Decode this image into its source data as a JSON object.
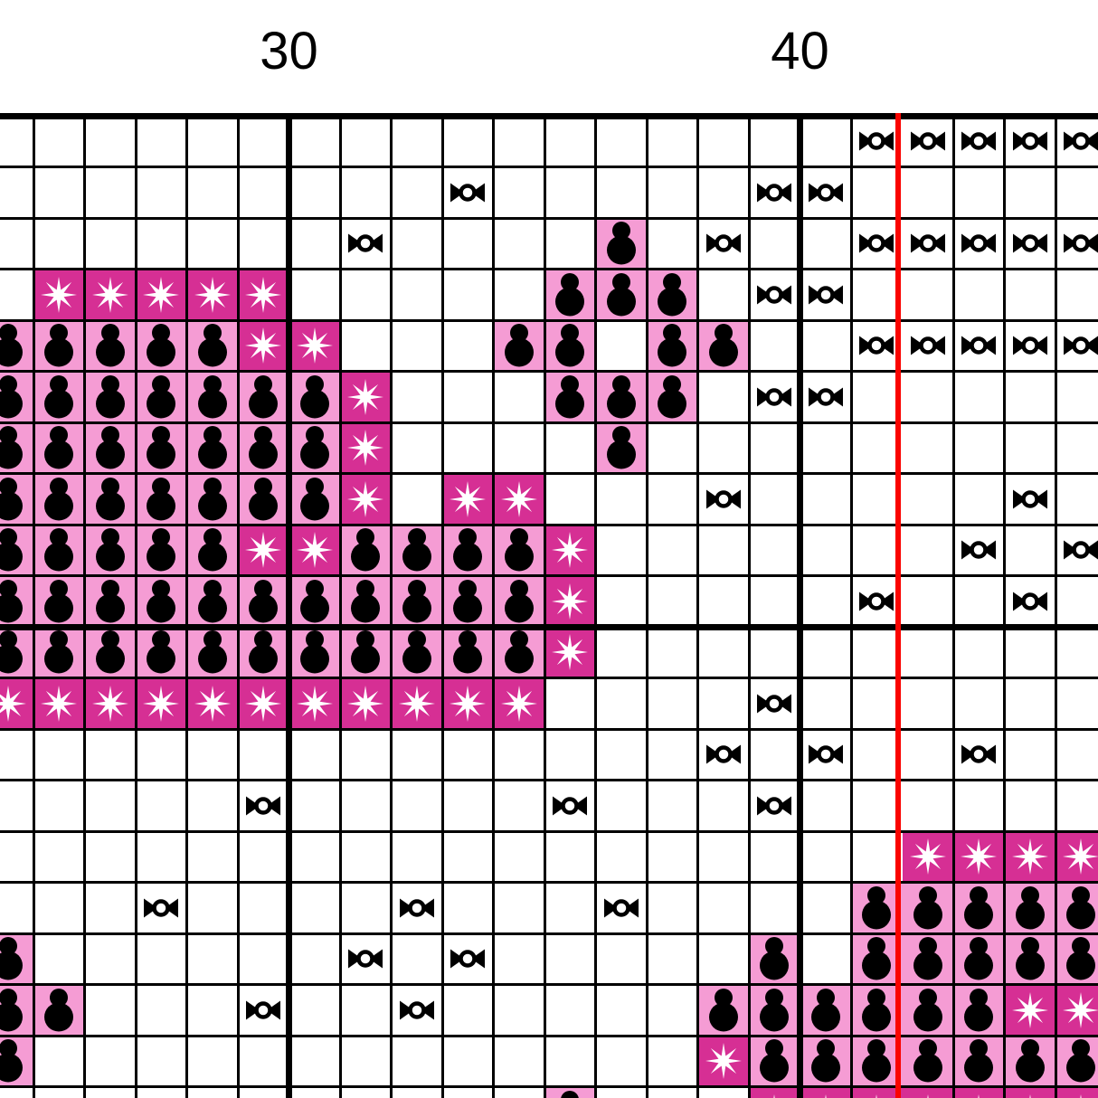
{
  "axis": {
    "labels": [
      {
        "text": "30",
        "line_index": 5
      },
      {
        "text": "40",
        "line_index": 15
      }
    ]
  },
  "colors": {
    "white": "#FFFFFF",
    "pink": "#F59CD4",
    "magenta": "#D62F94",
    "red_line": "#FA0400",
    "grid_line": "#000000",
    "symbol_black": "#000000",
    "symbol_white": "#FFFFFF"
  },
  "center_line": {
    "line_index": 17,
    "color": "#FA0400"
  },
  "legend": {
    ".": {
      "bg": "white",
      "symbol": null
    },
    "C": {
      "bg": "white",
      "symbol": "candy"
    },
    "B": {
      "bg": "pink",
      "symbol": "bulb"
    },
    "S": {
      "bg": "magenta",
      "symbol": "star"
    }
  },
  "grid": {
    "rows": [
      ".................CCCCC",
      ".........C.....CC.....",
      ".......C....B.C..CCCCC",
      ".SSSSS.....BBB.CC.....",
      "BBBBBSS...BB.BB..CCCCC",
      "BBBBBBBS...BBB.CC.....",
      "BBBBBBBS....B.........",
      "BBBBBBBS.SS...C.....C.",
      "BBBBBSSBBBBS.......C.C",
      "BBBBBBBBBBBS.....C..C.",
      "BBBBBBBBBBBS..........",
      "SSSSSSSSSSS....C......",
      "..............C.C..C..",
      ".....C.....C...C......",
      "..................SSSS",
      "...C....C...C....BBBBB",
      "B......C.C.....B.BBBBB",
      "BB...C..C.....BBBBBBSS",
      "B.............SBBBBBBB",
      "...........B...SSSSSSS"
    ]
  }
}
